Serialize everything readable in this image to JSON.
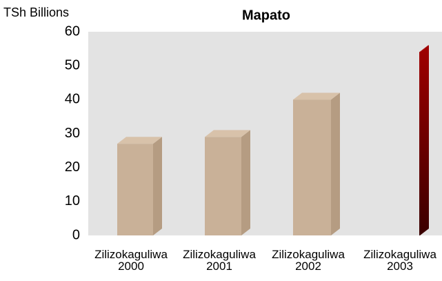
{
  "chart_data": {
    "type": "bar3d",
    "title": "Mapato",
    "y_label": "TSh Billions",
    "categories": [
      "Zilizokaguliwa 2000",
      "Zilizokaguliwa 2001",
      "Zilizokaguliwa 2002",
      "Zilizokaguliwa 2003"
    ],
    "values": [
      27,
      29,
      40,
      54
    ],
    "colors": [
      "#c9b198",
      "#c9b198",
      "#c9b198",
      "#8b0000"
    ],
    "ylim": [
      0,
      60
    ],
    "yticks": [
      0,
      10,
      20,
      30,
      40,
      50,
      60
    ]
  }
}
